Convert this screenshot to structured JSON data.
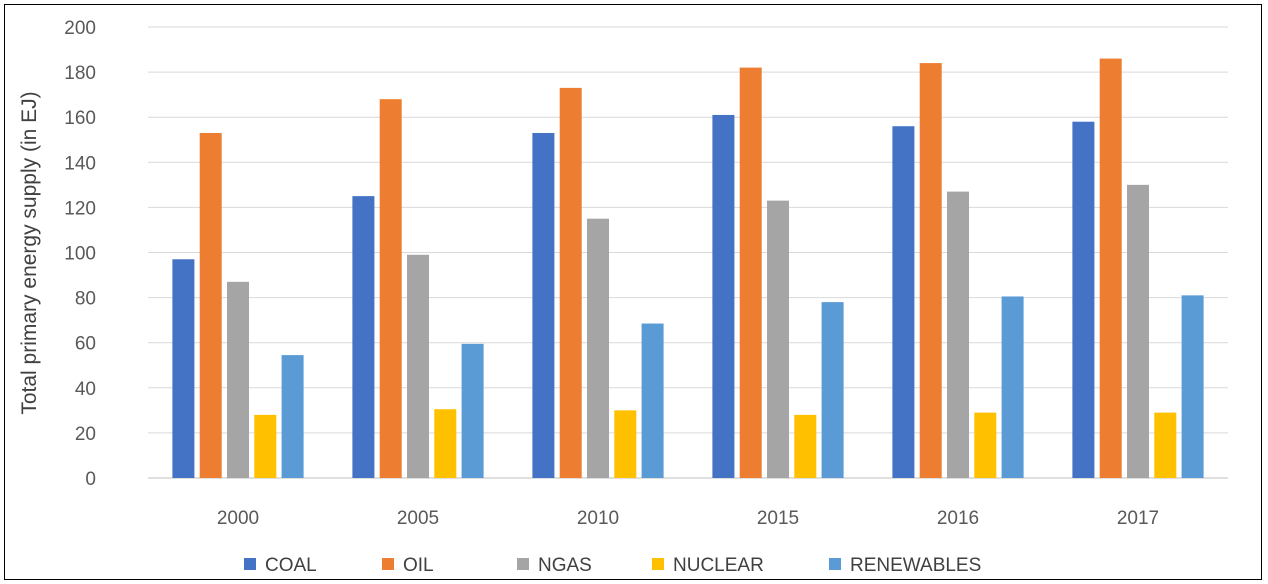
{
  "chart_data": {
    "type": "bar",
    "title": "",
    "xlabel": "",
    "ylabel": "Total primary energy supply (in EJ)",
    "categories": [
      "2000",
      "2005",
      "2010",
      "2015",
      "2016",
      "2017"
    ],
    "ylim": [
      0,
      200
    ],
    "yticks": [
      "0",
      "20",
      "40",
      "60",
      "80",
      "100",
      "120",
      "140",
      "160",
      "180",
      "200"
    ],
    "grid": true,
    "legend_position": "bottom",
    "series": [
      {
        "name": "COAL",
        "color": "#4472C4",
        "values": [
          97,
          125,
          153,
          161,
          156,
          158
        ]
      },
      {
        "name": "OIL",
        "color": "#ED7D31",
        "values": [
          153,
          168,
          173,
          182,
          184,
          186
        ]
      },
      {
        "name": "NGAS",
        "color": "#A5A5A5",
        "values": [
          87,
          99,
          115,
          123,
          127,
          130
        ]
      },
      {
        "name": "NUCLEAR",
        "color": "#FFC000",
        "values": [
          28,
          30.5,
          30,
          28,
          29,
          29
        ]
      },
      {
        "name": "RENEWABLES",
        "color": "#5B9BD5",
        "values": [
          54.5,
          59.5,
          68.5,
          78,
          80.5,
          81
        ]
      }
    ]
  }
}
